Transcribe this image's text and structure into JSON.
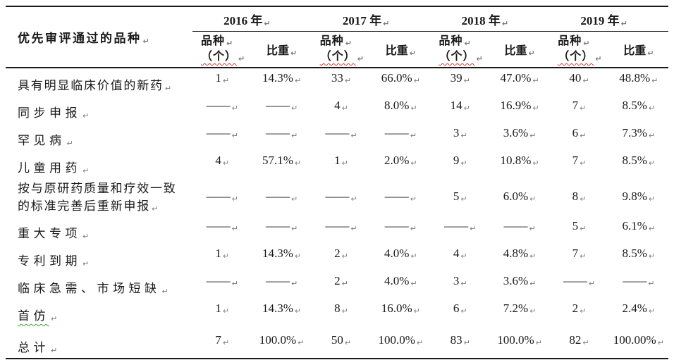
{
  "table": {
    "row_header": "优先审评通过的品种",
    "years": [
      "2016 年",
      "2017 年",
      "2018 年",
      "2019 年"
    ],
    "subheaders": {
      "count_line1": "品种",
      "count_line2": "（个）",
      "share": "比重"
    },
    "pilcrow": "↵",
    "rows": [
      {
        "label": "具有明显临床价值的新药",
        "values": [
          "1",
          "14.3%",
          "33",
          "66.0%",
          "39",
          "47.0%",
          "40",
          "48.8%"
        ]
      },
      {
        "label": "同步申报",
        "values": [
          "——",
          "——",
          "4",
          "8.0%",
          "14",
          "16.9%",
          "7",
          "8.5%"
        ]
      },
      {
        "label": "罕见病",
        "values": [
          "——",
          "——",
          "——",
          "——",
          "3",
          "3.6%",
          "6",
          "7.3%"
        ]
      },
      {
        "label": "儿童用药",
        "values": [
          "4",
          "57.1%",
          "1",
          "2.0%",
          "9",
          "10.8%",
          "7",
          "8.5%"
        ]
      },
      {
        "label": "按与原研药质量和疗效一致的标准完善后重新申报",
        "label_lines": [
          "按与原研药质量和疗效一致",
          "的标准完善后重新申报"
        ],
        "two_line": true,
        "values": [
          "——",
          "——",
          "——",
          "——",
          "5",
          "6.0%",
          "8",
          "9.8%"
        ]
      },
      {
        "label": "重大专项",
        "values": [
          "——",
          "——",
          "——",
          "——",
          "——",
          "——",
          "5",
          "6.1%"
        ]
      },
      {
        "label": "专利到期",
        "values": [
          "1",
          "14.3%",
          "2",
          "4.0%",
          "4",
          "4.8%",
          "7",
          "8.5%"
        ]
      },
      {
        "label": "临床急需、市场短缺",
        "values": [
          "——",
          "——",
          "2",
          "4.0%",
          "3",
          "3.6%",
          "——",
          "——"
        ]
      },
      {
        "label": "首仿",
        "grammar_underline": true,
        "values": [
          "1",
          "14.3%",
          "8",
          "16.0%",
          "6",
          "7.2%",
          "2",
          "2.4%"
        ]
      },
      {
        "label": "总计",
        "values": [
          "7",
          "100.0%",
          "50",
          "100.0%",
          "83",
          "100.0%",
          "82",
          "100.00%"
        ]
      }
    ],
    "colors": {
      "text": "#1a1a1a",
      "formatting_mark": "#7a7a7a",
      "spell_squiggle": "#e03a2f",
      "grammar_squiggle": "#3f9e3f"
    }
  }
}
